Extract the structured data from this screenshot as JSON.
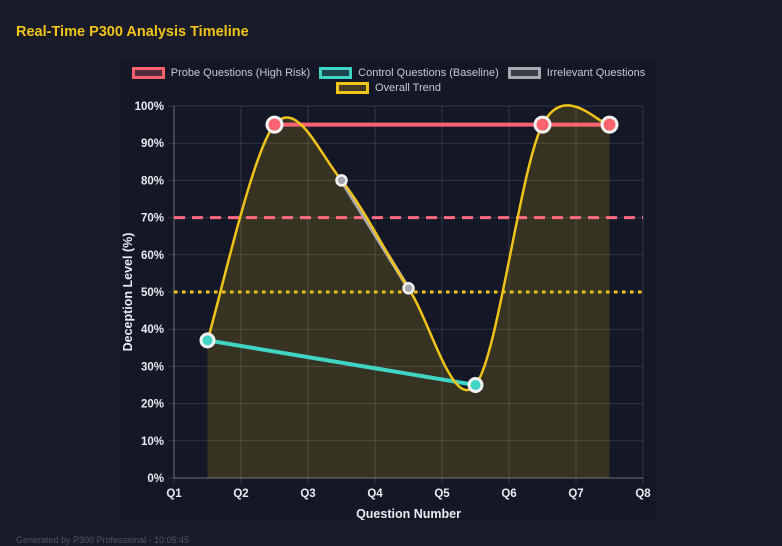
{
  "title": "Real-Time P300 Analysis Timeline",
  "footer": "Generated by P300 Professional - 10:05:45",
  "colors": {
    "page_bg": "#191c28",
    "panel_bg": "#141726",
    "title_text": "#f0c419",
    "grid": "rgba(255,255,255,0.13)",
    "axis_border": "rgba(255,255,255,0.28)",
    "tick_text": "#e9ebf2",
    "axis_title_text": "#e9ebf2",
    "legend_text": "#c6cad4",
    "point_border": "#f2f2f2",
    "footer_text": "#4e5368"
  },
  "chart_data": {
    "type": "line",
    "xlabel": "Question Number",
    "ylabel": "Deception Level (%)",
    "x_ticks": [
      "Q1",
      "Q2",
      "Q3",
      "Q4",
      "Q5",
      "Q6",
      "Q7",
      "Q8"
    ],
    "xlim": [
      1,
      8
    ],
    "ylim": [
      0,
      100
    ],
    "y_tick_step": 10,
    "y_tick_suffix": "%",
    "grid": true,
    "legend_position": "top",
    "legend": [
      {
        "label": "Probe Questions (High Risk)",
        "color": "#ff6370",
        "fill": "rgba(255,99,112,0.25)",
        "row": 0
      },
      {
        "label": "Control Questions (Baseline)",
        "color": "#40d4c4",
        "fill": "rgba(64,212,196,0.25)",
        "row": 0
      },
      {
        "label": "Irrelevant Questions",
        "color": "#a8a8b0",
        "fill": "rgba(168,168,176,0.25)",
        "row": 0
      },
      {
        "label": "Overall Trend",
        "color": "#f0c419",
        "fill": "rgba(240,196,25,0.2)",
        "row": 1
      }
    ],
    "series": [
      {
        "name": "Overall Trend",
        "key": "trend",
        "color": "#f0c419",
        "line_width": 2.5,
        "smooth": true,
        "fill": true,
        "fill_color": "rgba(240,196,25,0.16)",
        "point_radius": 0,
        "points": [
          {
            "x": 1.5,
            "y": 37
          },
          {
            "x": 2.5,
            "y": 95
          },
          {
            "x": 3.5,
            "y": 80
          },
          {
            "x": 4.5,
            "y": 51
          },
          {
            "x": 5.5,
            "y": 25
          },
          {
            "x": 6.5,
            "y": 95
          },
          {
            "x": 7.5,
            "y": 95
          }
        ]
      },
      {
        "name": "Probe Questions (High Risk)",
        "key": "probe",
        "color": "#ff6370",
        "line_width": 4,
        "smooth": false,
        "fill": false,
        "point_radius": 7.5,
        "point_border_width": 3,
        "points": [
          {
            "x": 2.5,
            "y": 95
          },
          {
            "x": 6.5,
            "y": 95
          },
          {
            "x": 7.5,
            "y": 95
          }
        ]
      },
      {
        "name": "Control Questions (Baseline)",
        "key": "control",
        "color": "#40d4c4",
        "line_width": 4,
        "smooth": false,
        "fill": false,
        "point_radius": 6.5,
        "point_border_width": 3,
        "points": [
          {
            "x": 1.5,
            "y": 37
          },
          {
            "x": 5.5,
            "y": 25
          }
        ]
      },
      {
        "name": "Irrelevant Questions",
        "key": "irrelevant",
        "color": "#a8a8b0",
        "line_width": 4,
        "smooth": false,
        "fill": false,
        "point_radius": 5,
        "point_border_width": 2.5,
        "points": [
          {
            "x": 3.5,
            "y": 80
          },
          {
            "x": 4.5,
            "y": 51
          }
        ]
      }
    ],
    "thresholds": [
      {
        "y": 70,
        "color": "#ff6b80",
        "dash": "11 7",
        "width": 3,
        "name": "high-risk-threshold"
      },
      {
        "y": 50,
        "color": "#f0c419",
        "dash": "3.5 4.5",
        "width": 3,
        "name": "baseline-threshold"
      }
    ]
  }
}
